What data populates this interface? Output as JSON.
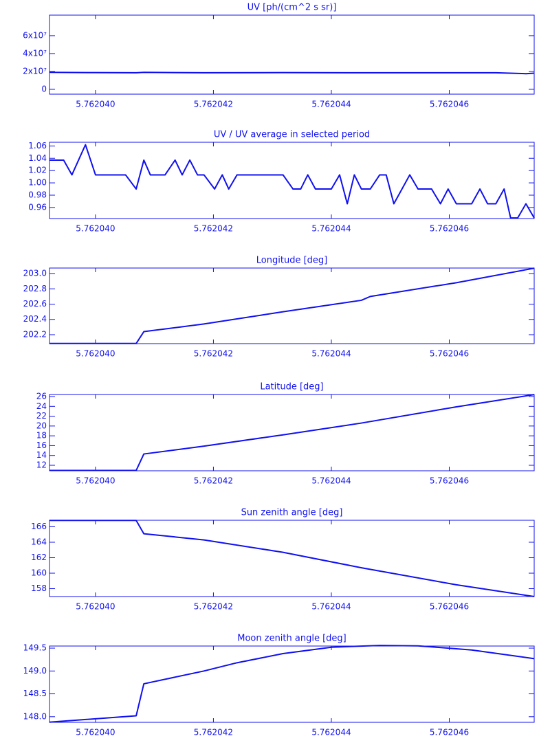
{
  "chart_data": [
    {
      "type": "line",
      "title": "UV [ph/(cm^2 s sr)]",
      "color": "#1010f0",
      "x": [
        5.76203922,
        5.76204,
        5.76204069,
        5.76204082,
        5.76204184,
        5.76204318,
        5.76204427,
        5.76204547,
        5.76204679,
        5.7620473,
        5.76204744
      ],
      "values": [
        19000000,
        18700000,
        18500000,
        19000000,
        18500000,
        18700000,
        18500000,
        18500000,
        18500000,
        17500000,
        18000000
      ],
      "xlim": [
        5.76203922,
        5.76204744
      ],
      "xticks": [
        {
          "value": 5.76204,
          "label": "5.762040"
        },
        {
          "value": 5.762042,
          "label": "5.762042"
        },
        {
          "value": 5.762044,
          "label": "5.762044"
        },
        {
          "value": 5.762046,
          "label": "5.762046"
        }
      ],
      "ylim": [
        -5400000,
        83000000
      ],
      "yticks": [
        0,
        {
          "value": 20000000,
          "label": "2x10⁷"
        },
        {
          "value": 40000000,
          "label": "4x10⁷"
        },
        {
          "value": 60000000,
          "label": "6x10⁷"
        }
      ]
    },
    {
      "type": "line",
      "title": "UV / UV average in selected period",
      "color": "#1010f0",
      "x": [
        5.76203922,
        5.76203946,
        5.7620396,
        5.76203983,
        5.76204,
        5.76204051,
        5.76204069,
        5.76204082,
        5.76204093,
        5.76204118,
        5.76204135,
        5.76204147,
        5.7620416,
        5.76204173,
        5.76204184,
        5.76204202,
        5.76204215,
        5.76204226,
        5.7620424,
        5.76204318,
        5.76204335,
        5.76204348,
        5.7620436,
        5.76204373,
        5.762044,
        5.76204414,
        5.76204427,
        5.76204439,
        5.76204451,
        5.76204466,
        5.76204482,
        5.76204493,
        5.76204506,
        5.76204533,
        5.76204547,
        5.7620457,
        5.76204585,
        5.76204598,
        5.76204612,
        5.76204638,
        5.76204652,
        5.76204665,
        5.76204679,
        5.76204693,
        5.76204704,
        5.76204716,
        5.7620473,
        5.76204744
      ],
      "values": [
        1.037,
        1.037,
        1.013,
        1.062,
        1.013,
        1.013,
        0.99,
        1.037,
        1.013,
        1.013,
        1.037,
        1.013,
        1.037,
        1.013,
        1.013,
        0.99,
        1.013,
        0.99,
        1.013,
        1.013,
        0.99,
        0.99,
        1.013,
        0.99,
        0.99,
        1.013,
        0.966,
        1.013,
        0.99,
        0.99,
        1.013,
        1.013,
        0.966,
        1.013,
        0.99,
        0.99,
        0.966,
        0.99,
        0.966,
        0.966,
        0.99,
        0.966,
        0.966,
        0.99,
        0.943,
        0.943,
        0.966,
        0.943
      ],
      "xlim": [
        5.76203922,
        5.76204744
      ],
      "xticks": [
        {
          "value": 5.76204,
          "label": "5.762040"
        },
        {
          "value": 5.762042,
          "label": "5.762042"
        },
        {
          "value": 5.762044,
          "label": "5.762044"
        },
        {
          "value": 5.762046,
          "label": "5.762046"
        }
      ],
      "ylim": [
        0.942,
        1.066
      ],
      "yticks": [
        0.96,
        0.98,
        {
          "value": 1,
          "label": "1.00"
        },
        1.02,
        1.04,
        1.06
      ]
    },
    {
      "type": "line",
      "title": "Longitude [deg]",
      "color": "#1010f0",
      "x": [
        5.76203922,
        5.76204069,
        5.76204082,
        5.76204184,
        5.76204318,
        5.76204451,
        5.76204466,
        5.76204612,
        5.76204744
      ],
      "values": [
        202.085,
        202.085,
        202.24,
        202.34,
        202.5,
        202.65,
        202.7,
        202.88,
        203.07
      ],
      "xlim": [
        5.76203922,
        5.76204744
      ],
      "xticks": [
        {
          "value": 5.76204,
          "label": "5.762040"
        },
        {
          "value": 5.762042,
          "label": "5.762042"
        },
        {
          "value": 5.762044,
          "label": "5.762044"
        },
        {
          "value": 5.762046,
          "label": "5.762046"
        }
      ],
      "ylim": [
        202.083,
        203.072
      ],
      "yticks": [
        202.2,
        202.4,
        202.6,
        202.8,
        {
          "value": 203,
          "label": "203.0"
        }
      ]
    },
    {
      "type": "line",
      "title": "Latitude [deg]",
      "color": "#1010f0",
      "x": [
        5.76203922,
        5.76204069,
        5.76204082,
        5.76204184,
        5.76204318,
        5.76204451,
        5.76204612,
        5.76204744
      ],
      "values": [
        10.95,
        10.95,
        14.3,
        15.9,
        18.2,
        20.6,
        23.9,
        26.4
      ],
      "xlim": [
        5.76203922,
        5.76204744
      ],
      "xticks": [
        {
          "value": 5.76204,
          "label": "5.762040"
        },
        {
          "value": 5.762042,
          "label": "5.762042"
        },
        {
          "value": 5.762044,
          "label": "5.762044"
        },
        {
          "value": 5.762046,
          "label": "5.762046"
        }
      ],
      "ylim": [
        10.88,
        26.42
      ],
      "yticks": [
        12,
        14,
        16,
        18,
        20,
        22,
        24,
        26
      ]
    },
    {
      "type": "line",
      "title": "Sun zenith angle [deg]",
      "color": "#1010f0",
      "x": [
        5.76203922,
        5.76204069,
        5.76204082,
        5.76204184,
        5.76204318,
        5.76204451,
        5.76204612,
        5.76204744
      ],
      "values": [
        166.82,
        166.82,
        165.1,
        164.3,
        162.7,
        160.7,
        158.5,
        156.98
      ],
      "xlim": [
        5.76203922,
        5.76204744
      ],
      "xticks": [
        {
          "value": 5.76204,
          "label": "5.762040"
        },
        {
          "value": 5.762042,
          "label": "5.762042"
        },
        {
          "value": 5.762044,
          "label": "5.762044"
        },
        {
          "value": 5.762046,
          "label": "5.762046"
        }
      ],
      "ylim": [
        156.98,
        166.84
      ],
      "yticks": [
        158,
        160,
        162,
        164,
        166
      ]
    },
    {
      "type": "line",
      "title": "Moon zenith angle [deg]",
      "color": "#1010f0",
      "x": [
        5.76203922,
        5.76204069,
        5.76204082,
        5.76204184,
        5.7620424,
        5.76204318,
        5.762044,
        5.76204482,
        5.76204547,
        5.76204638,
        5.76204744
      ],
      "values": [
        147.88,
        148.02,
        148.72,
        149.0,
        149.18,
        149.38,
        149.52,
        149.56,
        149.55,
        149.46,
        149.27
      ],
      "xlim": [
        5.76203922,
        5.76204744
      ],
      "xticks": [
        {
          "value": 5.76204,
          "label": "5.762040"
        },
        {
          "value": 5.762042,
          "label": "5.762042"
        },
        {
          "value": 5.762044,
          "label": "5.762044"
        },
        {
          "value": 5.762046,
          "label": "5.762046"
        }
      ],
      "ylim": [
        147.877,
        149.546
      ],
      "yticks": [
        {
          "value": 148,
          "label": "148.0"
        },
        148.5,
        {
          "value": 149,
          "label": "149.0"
        },
        149.5
      ]
    }
  ]
}
